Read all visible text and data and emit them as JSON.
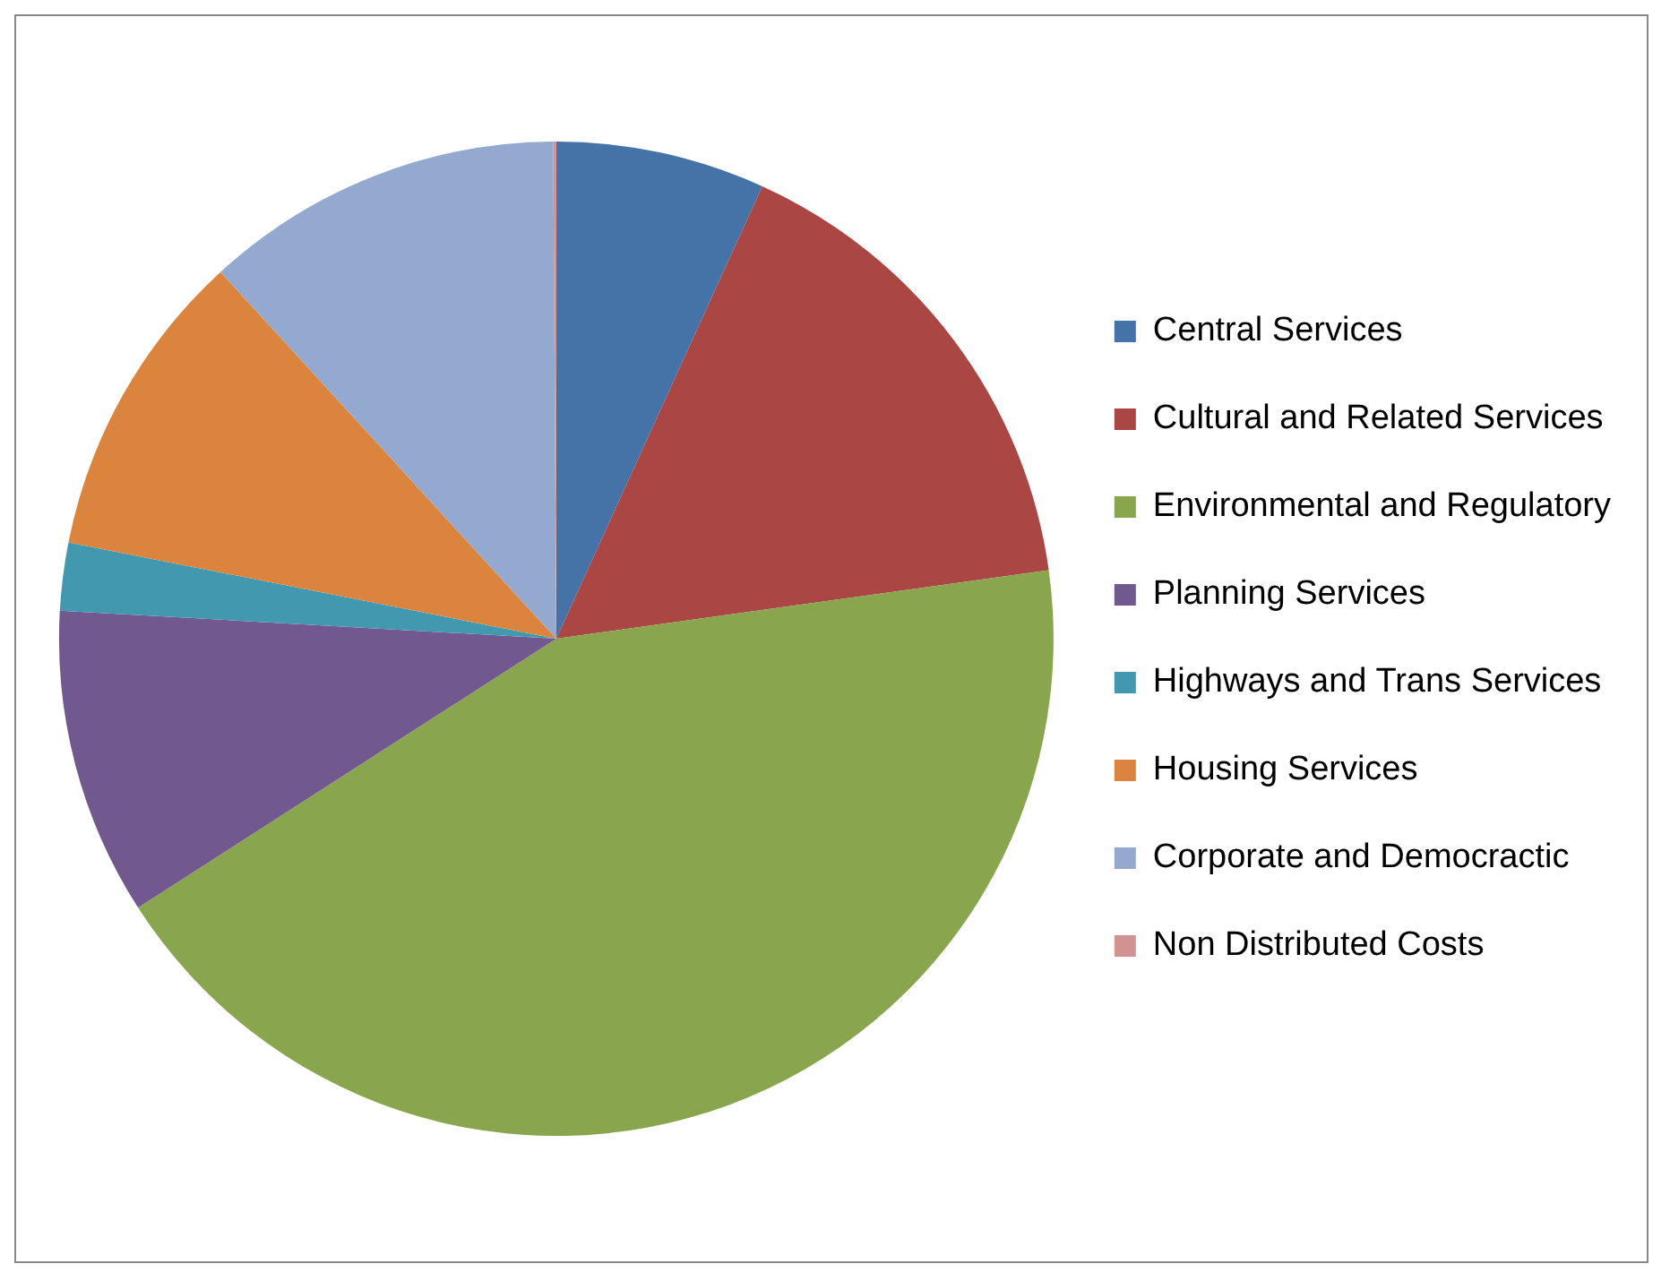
{
  "chart_data": {
    "type": "pie",
    "categories": [
      "Central Services",
      "Cultural and Related Services",
      "Environmental and Regulatory",
      "Planning Services",
      "Highways and Trans Services",
      "Housing Services",
      "Corporate and Democractic",
      "Non Distributed Costs"
    ],
    "values": [
      6.8,
      16.0,
      43.1,
      10.0,
      2.2,
      10.1,
      11.7,
      0.1
    ],
    "colors": [
      "#4572a7",
      "#aa4643",
      "#89a54e",
      "#71588f",
      "#4198af",
      "#db843d",
      "#93a9cf",
      "#d19392"
    ],
    "legend": "right"
  }
}
